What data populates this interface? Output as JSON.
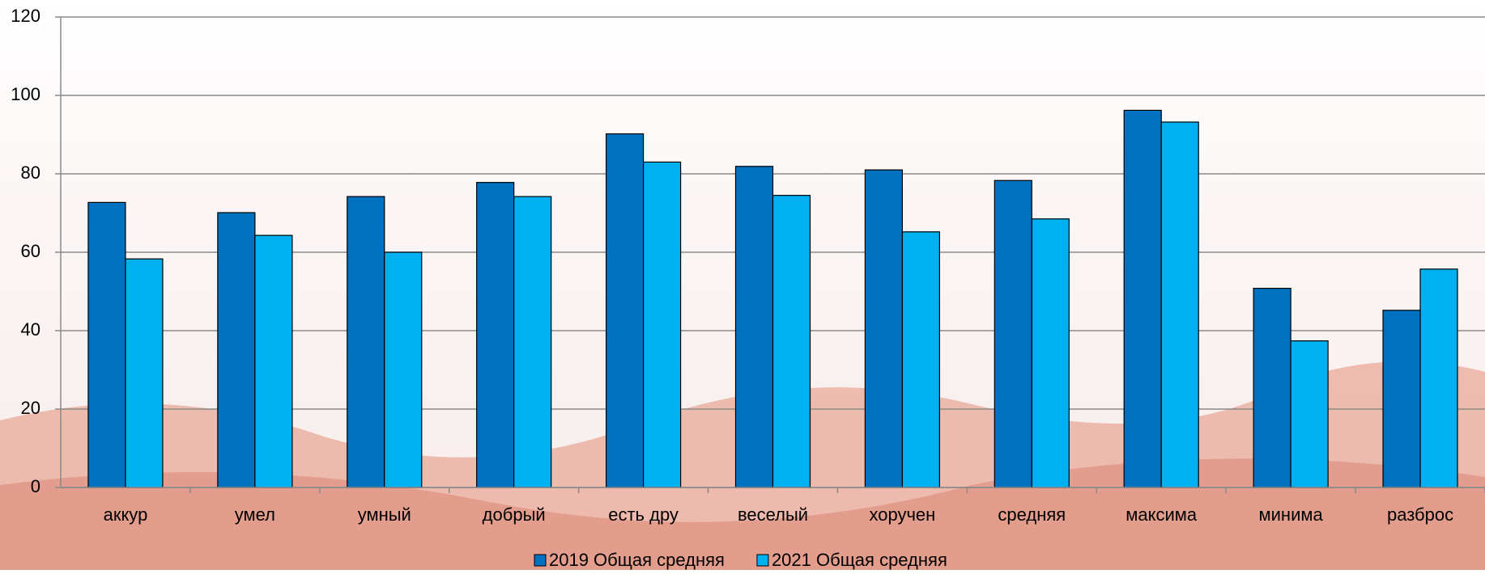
{
  "chart_data": {
    "type": "bar",
    "categories": [
      "аккур",
      "умел",
      "умный",
      "добрый",
      "есть дру",
      "веселый",
      "хоручен",
      "средняя",
      "максима",
      "минима",
      "разброс"
    ],
    "series": [
      {
        "name": "2019 Общая средняя",
        "color": "#0070c0",
        "values": [
          72.7,
          70.1,
          74.2,
          77.8,
          90.2,
          81.9,
          81.0,
          78.3,
          96.2,
          50.8,
          45.2
        ]
      },
      {
        "name": "2021 Общая средняя",
        "color": "#00b0f0",
        "values": [
          58.3,
          64.3,
          60.0,
          74.2,
          83.0,
          74.5,
          65.2,
          68.5,
          93.2,
          37.4,
          55.7
        ]
      }
    ],
    "ylim": [
      0,
      120
    ],
    "yticks": [
      0,
      20,
      40,
      60,
      80,
      100,
      120
    ],
    "grid": true
  }
}
